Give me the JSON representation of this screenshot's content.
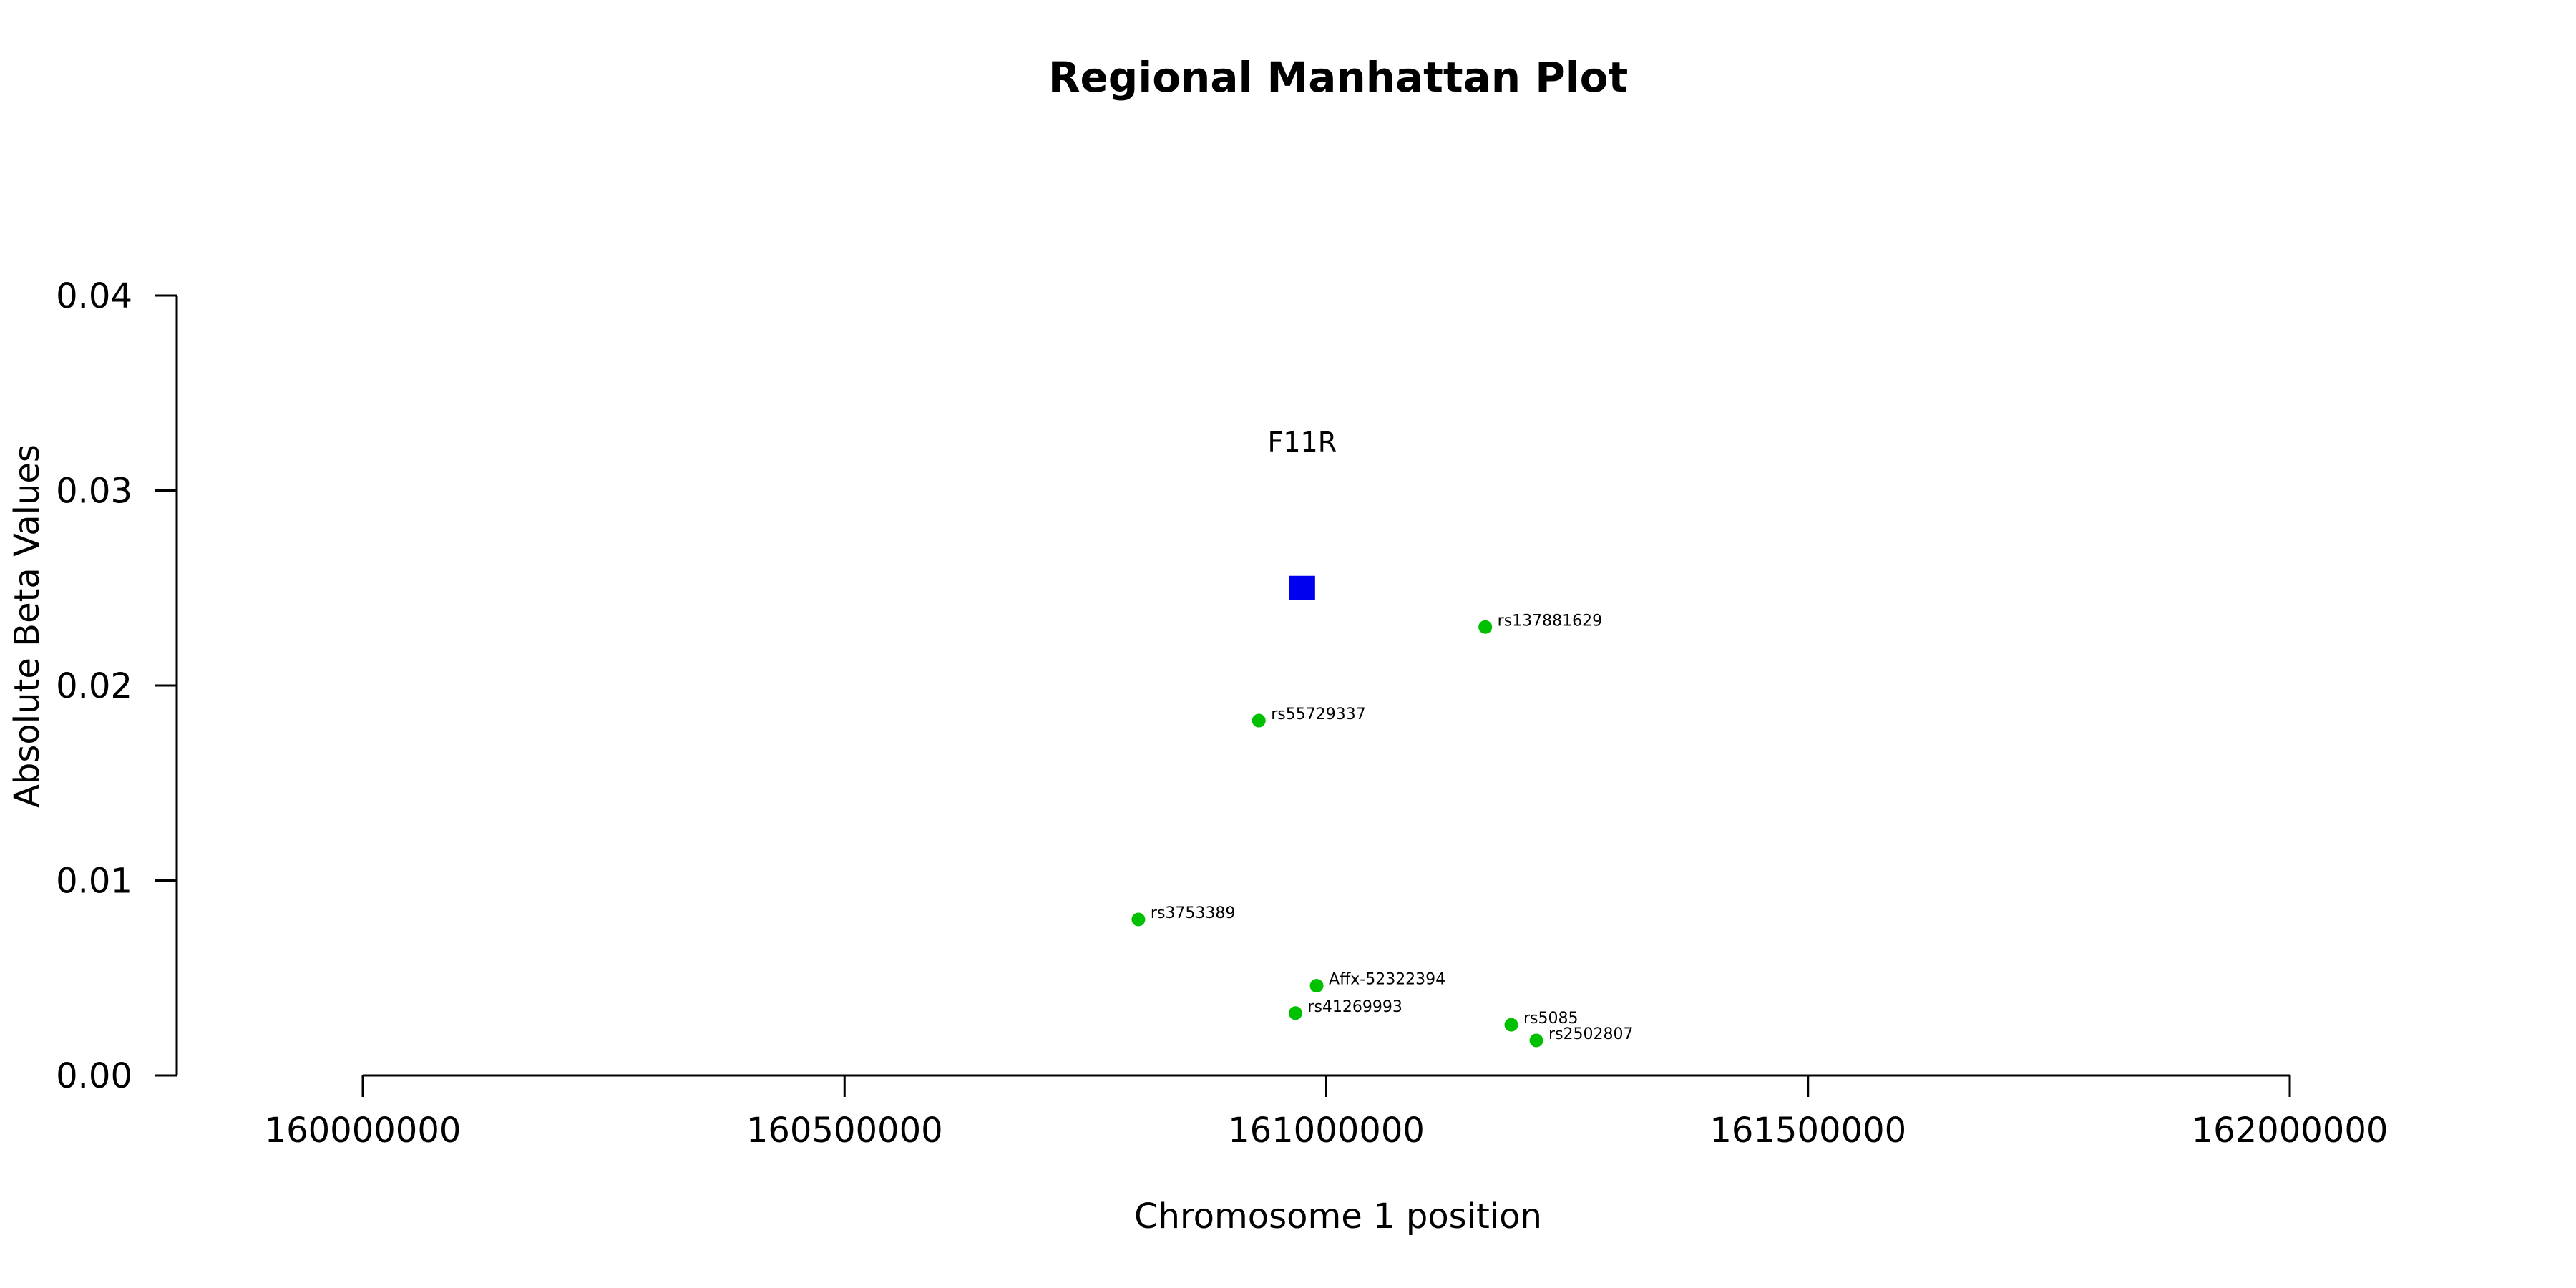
{
  "chart_data": {
    "type": "scatter",
    "title": "Regional Manhattan Plot",
    "xlabel": "Chromosome 1 position",
    "ylabel": "Absolute Beta Values",
    "xlim": [
      160000000,
      162000000
    ],
    "ylim": [
      0,
      0.04
    ],
    "x_ticks": [
      160000000,
      160500000,
      161000000,
      161500000,
      162000000
    ],
    "x_tick_labels": [
      "160000000",
      "160500000",
      "161000000",
      "161500000",
      "162000000"
    ],
    "y_ticks": [
      0,
      0.01,
      0.02,
      0.03,
      0.04
    ],
    "y_tick_labels": [
      "0.00",
      "0.01",
      "0.02",
      "0.03",
      "0.04"
    ],
    "grid": false,
    "colors": {
      "snp": "#00c000",
      "gene": "#0000ee",
      "axis": "#000000"
    },
    "gene": {
      "label": "F11R",
      "x": 160975000,
      "y": 0.025,
      "marker": "square"
    },
    "points": [
      {
        "label": "rs137881629",
        "x": 161165000,
        "y": 0.023
      },
      {
        "label": "rs55729337",
        "x": 160930000,
        "y": 0.0182
      },
      {
        "label": "rs3753389",
        "x": 160805000,
        "y": 0.008
      },
      {
        "label": "Affx-52322394",
        "x": 160990000,
        "y": 0.0046
      },
      {
        "label": "rs41269993",
        "x": 160968000,
        "y": 0.0032
      },
      {
        "label": "rs5085",
        "x": 161192000,
        "y": 0.0026
      },
      {
        "label": "rs2502807",
        "x": 161218000,
        "y": 0.0018
      }
    ]
  }
}
